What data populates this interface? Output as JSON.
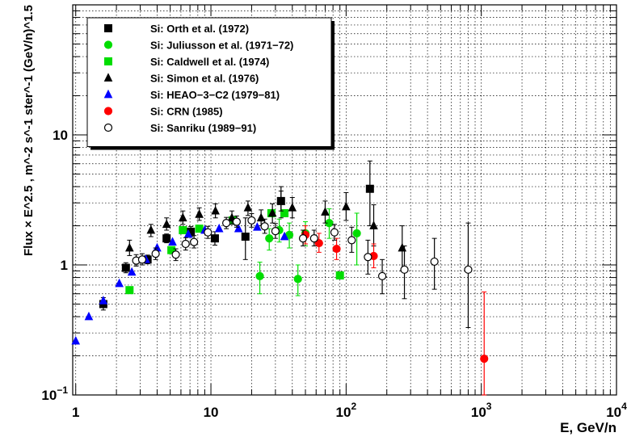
{
  "chart_data": {
    "type": "scatter",
    "x_scale": "log",
    "y_scale": "log",
    "xlim": [
      0.95,
      10000
    ],
    "ylim": [
      0.1,
      100
    ],
    "grid": true,
    "legend_position": "top-left",
    "xlabel": "E, GeV/n",
    "ylabel": "Flux × E^2.5 , m^-2 s^-1 ster^-1 (GeV/n)^1.5",
    "x_ticks": [
      {
        "value": 1,
        "base": "1",
        "exp": ""
      },
      {
        "value": 10,
        "base": "10",
        "exp": ""
      },
      {
        "value": 100,
        "base": "10",
        "exp": "2"
      },
      {
        "value": 1000,
        "base": "10",
        "exp": "3"
      },
      {
        "value": 10000,
        "base": "10",
        "exp": "4"
      }
    ],
    "y_ticks": [
      {
        "value": 0.1,
        "base": "10",
        "exp": "−1"
      },
      {
        "value": 1,
        "base": "1",
        "exp": ""
      },
      {
        "value": 10,
        "base": "10",
        "exp": ""
      }
    ],
    "series": [
      {
        "name": "Si: Orth et al. (1972)",
        "marker": "square",
        "color": "#000000",
        "filled": true,
        "points": [
          {
            "x": 1.6,
            "y": 0.5,
            "lo": 0.45,
            "hi": 0.56
          },
          {
            "x": 2.35,
            "y": 0.95,
            "lo": 0.87,
            "hi": 1.04
          },
          {
            "x": 3.4,
            "y": 1.1,
            "lo": 1.02,
            "hi": 1.19
          },
          {
            "x": 4.7,
            "y": 1.6,
            "lo": 1.48,
            "hi": 1.73
          },
          {
            "x": 7.1,
            "y": 1.8,
            "lo": 1.65,
            "hi": 1.97
          },
          {
            "x": 10.7,
            "y": 1.6,
            "lo": 1.42,
            "hi": 1.8
          },
          {
            "x": 18,
            "y": 1.65,
            "lo": 1.1,
            "hi": 2.3
          },
          {
            "x": 33,
            "y": 3.1,
            "lo": 2.3,
            "hi": 4.0
          },
          {
            "x": 150,
            "y": 3.85,
            "lo": 2.0,
            "hi": 6.3
          }
        ]
      },
      {
        "name": "Si: Juliusson et al. (1971−72)",
        "marker": "circle",
        "color": "#00dd00",
        "filled": true,
        "points": [
          {
            "x": 23,
            "y": 0.82,
            "lo": 0.6,
            "hi": 1.05
          },
          {
            "x": 27,
            "y": 1.6,
            "lo": 1.3,
            "hi": 1.9
          },
          {
            "x": 32,
            "y": 1.85,
            "lo": 1.5,
            "hi": 2.25
          },
          {
            "x": 38,
            "y": 1.7,
            "lo": 1.35,
            "hi": 2.1
          },
          {
            "x": 44,
            "y": 0.78,
            "lo": 0.58,
            "hi": 1.0
          },
          {
            "x": 50,
            "y": 1.75,
            "lo": 1.4,
            "hi": 2.15
          },
          {
            "x": 75,
            "y": 2.1,
            "lo": 1.6,
            "hi": 2.7
          },
          {
            "x": 120,
            "y": 1.75,
            "lo": 1.0,
            "hi": 2.5
          }
        ]
      },
      {
        "name": "Si: Caldwell et al. (1974)",
        "marker": "square",
        "color": "#00dd00",
        "filled": true,
        "points": [
          {
            "x": 2.5,
            "y": 0.64
          },
          {
            "x": 5.1,
            "y": 1.3
          },
          {
            "x": 6.2,
            "y": 1.85
          },
          {
            "x": 8.2,
            "y": 1.9
          },
          {
            "x": 14.5,
            "y": 2.2
          },
          {
            "x": 28,
            "y": 2.5
          },
          {
            "x": 35,
            "y": 2.5
          },
          {
            "x": 90,
            "y": 0.83
          }
        ]
      },
      {
        "name": "Si: Simon et al. (1976)",
        "marker": "triangle",
        "color": "#000000",
        "filled": true,
        "points": [
          {
            "x": 2.5,
            "y": 1.35,
            "lo": 1.18,
            "hi": 1.55
          },
          {
            "x": 3.6,
            "y": 1.85,
            "lo": 1.65,
            "hi": 2.05
          },
          {
            "x": 4.7,
            "y": 2.05,
            "lo": 1.85,
            "hi": 2.3
          },
          {
            "x": 6.2,
            "y": 2.3,
            "lo": 2.05,
            "hi": 2.6
          },
          {
            "x": 8.2,
            "y": 2.45,
            "lo": 2.2,
            "hi": 2.75
          },
          {
            "x": 10.8,
            "y": 2.6,
            "lo": 2.3,
            "hi": 2.95
          },
          {
            "x": 14.3,
            "y": 2.3,
            "lo": 2.05,
            "hi": 2.6
          },
          {
            "x": 18.8,
            "y": 2.75,
            "lo": 2.4,
            "hi": 3.1
          },
          {
            "x": 23.5,
            "y": 2.3,
            "lo": 2.0,
            "hi": 2.65
          },
          {
            "x": 28.5,
            "y": 2.5,
            "lo": 2.1,
            "hi": 2.95
          },
          {
            "x": 33,
            "y": 3.1,
            "lo": 2.6,
            "hi": 3.7
          },
          {
            "x": 40,
            "y": 2.75,
            "lo": 2.3,
            "hi": 3.3
          },
          {
            "x": 70,
            "y": 2.55,
            "lo": 2.1,
            "hi": 3.1
          },
          {
            "x": 100,
            "y": 2.8,
            "lo": 2.2,
            "hi": 3.6
          },
          {
            "x": 160,
            "y": 2.0,
            "lo": 1.4,
            "hi": 2.9
          },
          {
            "x": 260,
            "y": 1.35,
            "lo": 0.9,
            "hi": 2.0
          }
        ]
      },
      {
        "name": "Si: HEAO−3−C2 (1979−81)",
        "marker": "triangle",
        "color": "#0000ff",
        "filled": true,
        "points": [
          {
            "x": 1.0,
            "y": 0.26
          },
          {
            "x": 1.25,
            "y": 0.4
          },
          {
            "x": 1.6,
            "y": 0.53
          },
          {
            "x": 2.1,
            "y": 0.72
          },
          {
            "x": 2.6,
            "y": 0.88
          },
          {
            "x": 3.3,
            "y": 1.1
          },
          {
            "x": 4.0,
            "y": 1.35
          },
          {
            "x": 5.2,
            "y": 1.5
          },
          {
            "x": 6.8,
            "y": 1.72
          },
          {
            "x": 9.0,
            "y": 1.85
          },
          {
            "x": 11.5,
            "y": 1.9
          },
          {
            "x": 16,
            "y": 1.9
          },
          {
            "x": 22,
            "y": 1.95
          },
          {
            "x": 35,
            "y": 1.65
          }
        ]
      },
      {
        "name": "Si: CRN (1985)",
        "marker": "circle",
        "color": "#ff0000",
        "filled": true,
        "points": [
          {
            "x": 50,
            "y": 1.7,
            "lo": 1.45,
            "hi": 2.0
          },
          {
            "x": 63,
            "y": 1.47,
            "lo": 1.25,
            "hi": 1.75
          },
          {
            "x": 85,
            "y": 1.33,
            "lo": 1.1,
            "hi": 1.6
          },
          {
            "x": 160,
            "y": 1.17,
            "lo": 0.95,
            "hi": 1.45
          },
          {
            "x": 1050,
            "y": 0.19,
            "lo": 0.1,
            "hi": 0.62
          }
        ]
      },
      {
        "name": "Si: Sanriku (1989−91)",
        "marker": "circle",
        "color": "#000000",
        "filled": false,
        "points": [
          {
            "x": 2.8,
            "y": 1.08,
            "lo": 0.98,
            "hi": 1.2
          },
          {
            "x": 3.1,
            "y": 1.1,
            "lo": 1.0,
            "hi": 1.22
          },
          {
            "x": 3.9,
            "y": 1.22,
            "lo": 1.1,
            "hi": 1.35
          },
          {
            "x": 5.5,
            "y": 1.2,
            "lo": 1.08,
            "hi": 1.33
          },
          {
            "x": 6.5,
            "y": 1.45,
            "lo": 1.3,
            "hi": 1.62
          },
          {
            "x": 7.5,
            "y": 1.5,
            "lo": 1.35,
            "hi": 1.68
          },
          {
            "x": 9.5,
            "y": 1.78,
            "lo": 1.6,
            "hi": 1.98
          },
          {
            "x": 13,
            "y": 2.1,
            "lo": 1.9,
            "hi": 2.32
          },
          {
            "x": 15.5,
            "y": 2.15,
            "lo": 1.95,
            "hi": 2.38
          },
          {
            "x": 20,
            "y": 2.2,
            "lo": 1.95,
            "hi": 2.48
          },
          {
            "x": 25,
            "y": 1.98,
            "lo": 1.75,
            "hi": 2.25
          },
          {
            "x": 30,
            "y": 1.82,
            "lo": 1.6,
            "hi": 2.08
          },
          {
            "x": 48,
            "y": 1.6,
            "lo": 1.4,
            "hi": 1.85
          },
          {
            "x": 58,
            "y": 1.6,
            "lo": 1.4,
            "hi": 1.85
          },
          {
            "x": 82,
            "y": 1.78,
            "lo": 1.55,
            "hi": 2.05
          },
          {
            "x": 110,
            "y": 1.55,
            "lo": 1.25,
            "hi": 1.95
          },
          {
            "x": 145,
            "y": 1.15,
            "lo": 0.85,
            "hi": 1.55
          },
          {
            "x": 185,
            "y": 0.82,
            "lo": 0.6,
            "hi": 1.1
          },
          {
            "x": 270,
            "y": 0.92,
            "lo": 0.55,
            "hi": 1.4
          },
          {
            "x": 450,
            "y": 1.06,
            "lo": 0.65,
            "hi": 1.6
          },
          {
            "x": 800,
            "y": 0.92,
            "lo": 0.33,
            "hi": 2.1
          }
        ]
      }
    ]
  }
}
